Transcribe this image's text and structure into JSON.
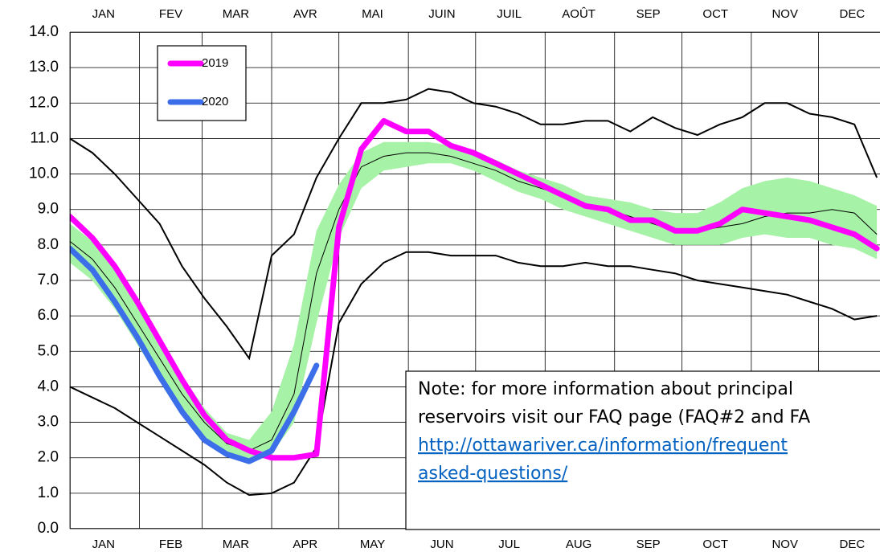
{
  "chart_data": {
    "type": "line",
    "x": [
      0,
      10,
      20,
      30,
      40,
      50,
      60,
      70,
      80,
      90,
      100,
      110,
      120,
      130,
      140,
      150,
      160,
      170,
      180,
      190,
      200,
      210,
      220,
      230,
      240,
      250,
      260,
      270,
      280,
      290,
      300,
      310,
      320,
      330,
      340,
      350,
      360
    ],
    "xlim": [
      0,
      365
    ],
    "xgrid": [
      0,
      31,
      59,
      90,
      120,
      151,
      181,
      212,
      243,
      273,
      304,
      334,
      365
    ],
    "xticks": [
      {
        "value": 15,
        "label": "JAN"
      },
      {
        "value": 45,
        "label": "FEB"
      },
      {
        "value": 74,
        "label": "MAR"
      },
      {
        "value": 105,
        "label": "APR"
      },
      {
        "value": 135,
        "label": "MAY"
      },
      {
        "value": 166,
        "label": "JUN"
      },
      {
        "value": 196,
        "label": "JUL"
      },
      {
        "value": 227,
        "label": "AUG"
      },
      {
        "value": 258,
        "label": "SEP"
      },
      {
        "value": 288,
        "label": "OCT"
      },
      {
        "value": 319,
        "label": "NOV"
      },
      {
        "value": 349,
        "label": "DEC"
      }
    ],
    "x2ticks": [
      {
        "value": 15,
        "label": "JAN"
      },
      {
        "value": 45,
        "label": "FEV"
      },
      {
        "value": 74,
        "label": "MAR"
      },
      {
        "value": 105,
        "label": "AVR"
      },
      {
        "value": 135,
        "label": "MAI"
      },
      {
        "value": 166,
        "label": "JUIN"
      },
      {
        "value": 196,
        "label": "JUIL"
      },
      {
        "value": 227,
        "label": "AOÛT"
      },
      {
        "value": 258,
        "label": "SEP"
      },
      {
        "value": 288,
        "label": "OCT"
      },
      {
        "value": 319,
        "label": "NOV"
      },
      {
        "value": 349,
        "label": "DEC"
      }
    ],
    "ylim": [
      0,
      14
    ],
    "yticks": [
      {
        "value": 0,
        "label": "0.0"
      },
      {
        "value": 1,
        "label": "1.0"
      },
      {
        "value": 2,
        "label": "2.0"
      },
      {
        "value": 3,
        "label": "3.0"
      },
      {
        "value": 4,
        "label": "4.0"
      },
      {
        "value": 5,
        "label": "5.0"
      },
      {
        "value": 6,
        "label": "6.0"
      },
      {
        "value": 7,
        "label": "7.0"
      },
      {
        "value": 8,
        "label": "8.0"
      },
      {
        "value": 9,
        "label": "9.0"
      },
      {
        "value": 10,
        "label": "10.0"
      },
      {
        "value": 11,
        "label": "11.0"
      },
      {
        "value": 12,
        "label": "12.0"
      },
      {
        "value": 13,
        "label": "13.0"
      },
      {
        "value": 14,
        "label": "14.0"
      }
    ],
    "grid": true,
    "envelope": {
      "line_color": "#000000",
      "band_color": "#a6f2a6",
      "max": [
        11.0,
        10.6,
        10.0,
        9.3,
        8.6,
        7.4,
        6.5,
        5.7,
        4.8,
        7.7,
        8.3,
        9.9,
        11.0,
        12.0,
        12.0,
        12.1,
        12.4,
        12.3,
        12.0,
        11.9,
        11.7,
        11.4,
        11.4,
        11.5,
        11.5,
        11.2,
        11.6,
        11.3,
        11.1,
        11.4,
        11.6,
        12.0,
        12.0,
        11.7,
        11.6,
        11.4,
        9.9
      ],
      "min": [
        4.0,
        3.7,
        3.4,
        3.0,
        2.6,
        2.2,
        1.8,
        1.3,
        0.95,
        1.0,
        1.3,
        2.3,
        5.8,
        6.9,
        7.5,
        7.8,
        7.8,
        7.7,
        7.7,
        7.7,
        7.5,
        7.4,
        7.4,
        7.5,
        7.4,
        7.4,
        7.3,
        7.2,
        7.0,
        6.9,
        6.8,
        6.7,
        6.6,
        6.4,
        6.2,
        5.9,
        6.0
      ],
      "median": [
        8.1,
        7.6,
        6.8,
        5.8,
        4.8,
        3.8,
        3.0,
        2.4,
        2.2,
        2.5,
        3.8,
        7.2,
        9.0,
        10.2,
        10.5,
        10.6,
        10.6,
        10.5,
        10.3,
        10.1,
        9.8,
        9.6,
        9.4,
        9.1,
        9.0,
        8.8,
        8.6,
        8.4,
        8.4,
        8.5,
        8.6,
        8.8,
        8.9,
        8.9,
        9.0,
        8.9,
        8.3
      ],
      "band_upper": [
        8.6,
        8.1,
        7.4,
        6.4,
        5.3,
        4.3,
        3.4,
        2.7,
        2.5,
        3.3,
        5.2,
        8.4,
        9.7,
        10.6,
        10.9,
        10.9,
        10.9,
        10.8,
        10.6,
        10.4,
        10.1,
        9.9,
        9.7,
        9.4,
        9.3,
        9.2,
        9.0,
        8.9,
        8.9,
        9.2,
        9.6,
        9.8,
        9.9,
        9.8,
        9.6,
        9.4,
        9.1
      ],
      "band_lower": [
        7.5,
        7.0,
        6.2,
        5.2,
        4.2,
        3.3,
        2.6,
        2.1,
        1.9,
        2.1,
        3.0,
        5.8,
        8.2,
        9.6,
        10.1,
        10.2,
        10.3,
        10.3,
        10.1,
        9.8,
        9.5,
        9.3,
        9.0,
        8.8,
        8.6,
        8.4,
        8.2,
        8.0,
        8.0,
        8.0,
        8.2,
        8.3,
        8.2,
        8.2,
        8.0,
        7.9,
        7.6
      ]
    },
    "series": [
      {
        "name": "2019",
        "color": "#ff00ff",
        "values": [
          8.8,
          8.2,
          7.4,
          6.4,
          5.3,
          4.2,
          3.2,
          2.5,
          2.2,
          2.0,
          2.0,
          2.1,
          8.5,
          10.7,
          11.5,
          11.2,
          11.2,
          10.8,
          10.6,
          10.3,
          10.0,
          9.7,
          9.4,
          9.1,
          9.0,
          8.7,
          8.7,
          8.4,
          8.4,
          8.6,
          9.0,
          8.9,
          8.8,
          8.7,
          8.5,
          8.3,
          7.9
        ]
      },
      {
        "name": "2020",
        "color": "#3b6ee8",
        "values": [
          7.9,
          7.3,
          6.4,
          5.4,
          4.3,
          3.3,
          2.5,
          2.1,
          1.9,
          2.2,
          3.3,
          4.6,
          null,
          null,
          null,
          null,
          null,
          null,
          null,
          null,
          null,
          null,
          null,
          null,
          null,
          null,
          null,
          null,
          null,
          null,
          null,
          null,
          null,
          null,
          null,
          null,
          null
        ]
      }
    ],
    "note": {
      "lines": [
        "Note:  for more information about principal",
        "reservoirs visit our FAQ page (FAQ#2 and FA"
      ],
      "link": [
        "http://ottawariver.ca/information/frequent",
        "asked-questions/"
      ]
    }
  }
}
